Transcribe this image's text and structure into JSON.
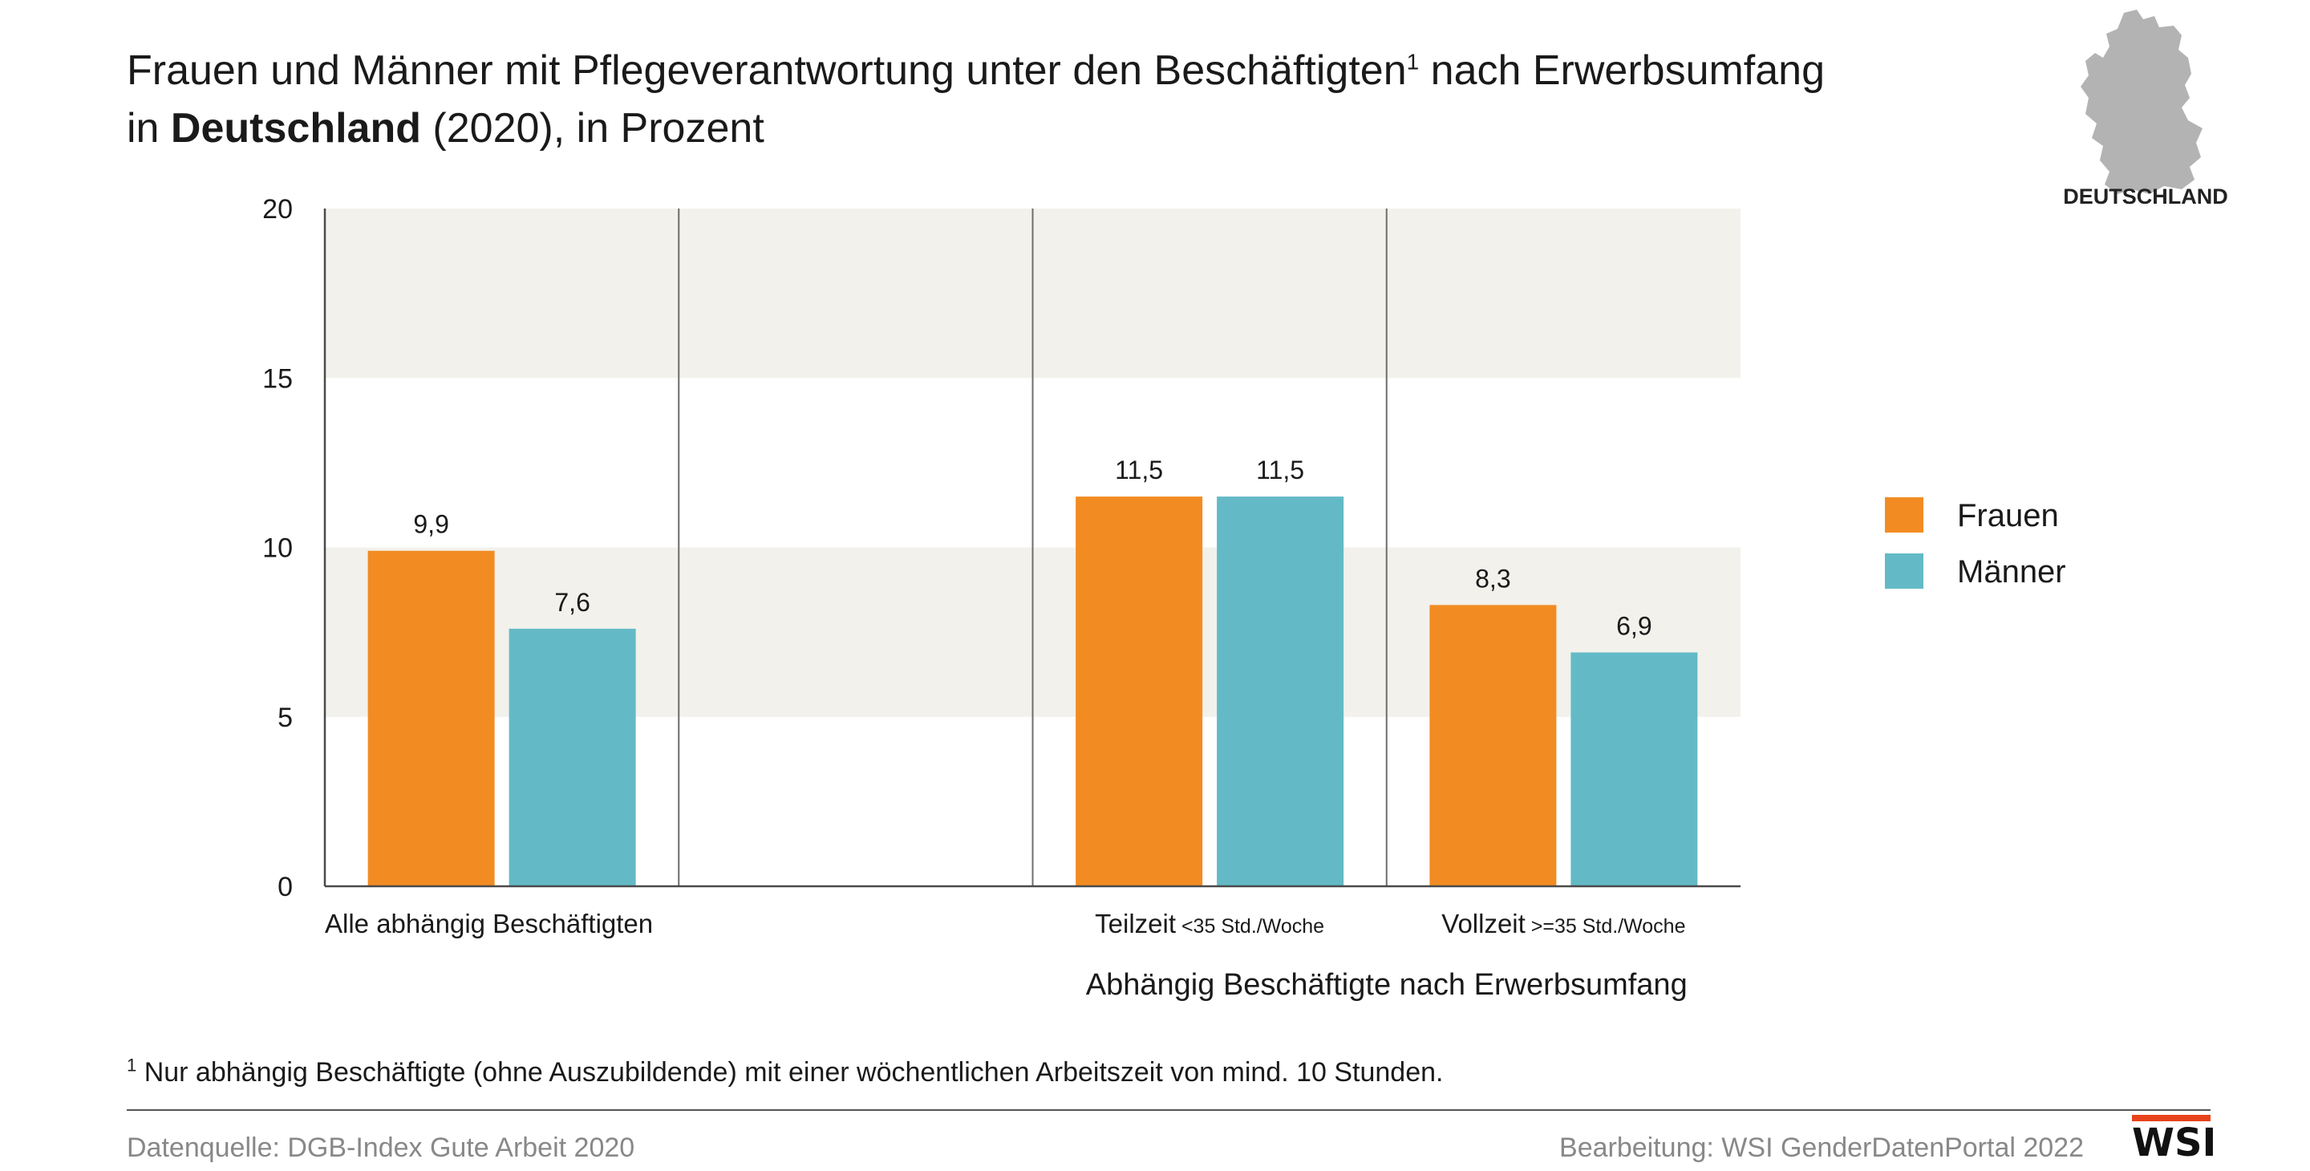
{
  "title": {
    "line1_a": "Frauen und Männer mit Pflegeverantwortung unter den Beschäftigten",
    "line1_sup": "1",
    "line1_b": " nach Erwerbsumfang",
    "line2_a": "in ",
    "line2_bold": "Deutschland",
    "line2_b": " (2020), in Prozent"
  },
  "map": {
    "label": "DEUTSCHLAND",
    "color": "#b3b3b3"
  },
  "chart_data": {
    "type": "bar",
    "ylim": [
      0,
      20
    ],
    "yticks": [
      0,
      5,
      10,
      15,
      20
    ],
    "groups": [
      {
        "label": "Alle abhängig Beschäftigten",
        "suffix": "",
        "values": [
          9.9,
          7.6
        ],
        "labels": [
          "9,9",
          "7,6"
        ]
      },
      {
        "label": "",
        "suffix": "",
        "values": [
          null,
          null
        ],
        "labels": [
          "",
          ""
        ]
      },
      {
        "label": "Teilzeit",
        "suffix": "<35 Std./Woche",
        "values": [
          11.5,
          11.5
        ],
        "labels": [
          "11,5",
          "11,5"
        ]
      },
      {
        "label": "Vollzeit",
        "suffix": ">=35 Std./Woche",
        "values": [
          8.3,
          6.9
        ],
        "labels": [
          "8,3",
          "6,9"
        ]
      }
    ],
    "series": [
      {
        "name": "Frauen",
        "color": "#f28c22"
      },
      {
        "name": "Männer",
        "color": "#63bac6"
      }
    ],
    "xlabel": "Abhängig Beschäftigte nach Erwerbsumfang",
    "legend_position": "right",
    "band_color": "#f2f1eb"
  },
  "footnote": {
    "mark": "1",
    "text": " Nur abhängig Beschäftigte (ohne Auszubildende) mit einer wöchentlichen Arbeitszeit von mind. 10 Stunden."
  },
  "source": "Datenquelle: DGB-Index Gute Arbeit 2020",
  "edit": "Bearbeitung: WSI GenderDatenPortal 2022",
  "logo": {
    "text": "WSI",
    "accent": "#e8431a"
  }
}
